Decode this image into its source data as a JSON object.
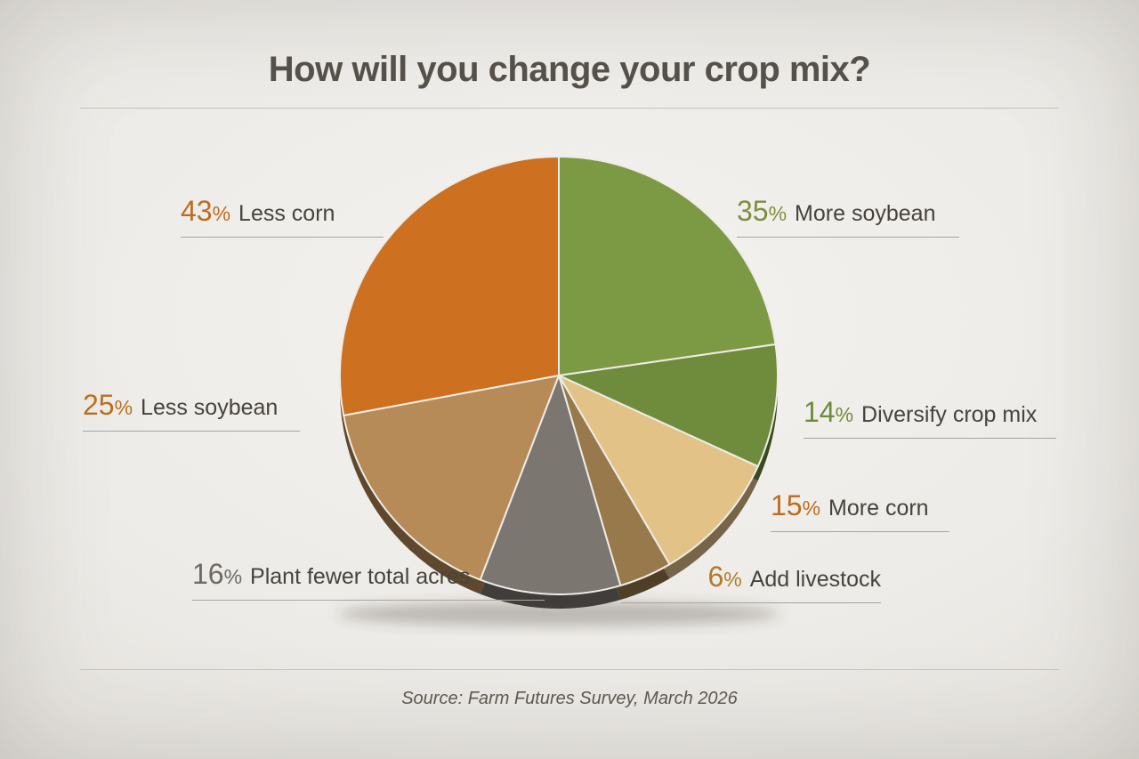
{
  "chart_data": {
    "type": "pie",
    "title": "How will you change your crop mix?",
    "items": [
      {
        "label": "More soybean",
        "pct": 35,
        "color": "#7c9a44",
        "pct_color": "#7f8e3e"
      },
      {
        "label": "Diversify crop mix",
        "pct": 14,
        "color": "#6f8c3d",
        "pct_color": "#6f8c39"
      },
      {
        "label": "More corn",
        "pct": 15,
        "color": "#e2c287",
        "pct_color": "#bf6b1e"
      },
      {
        "label": "Add livestock",
        "pct": 6,
        "color": "#97794b",
        "pct_color": "#b07a2a"
      },
      {
        "label": "Plant fewer total acres",
        "pct": 16,
        "color": "#7b7670",
        "pct_color": "#6e6a63"
      },
      {
        "label": "Less soybean",
        "pct": 25,
        "color": "#b68b58",
        "pct_color": "#ba6f1e"
      },
      {
        "label": "Less corn",
        "pct": 43,
        "color": "#cd7020",
        "pct_color": "#bf6b1e"
      }
    ]
  },
  "percent_sign": "%",
  "source_note": "Source: Farm Futures Survey, March 2026"
}
